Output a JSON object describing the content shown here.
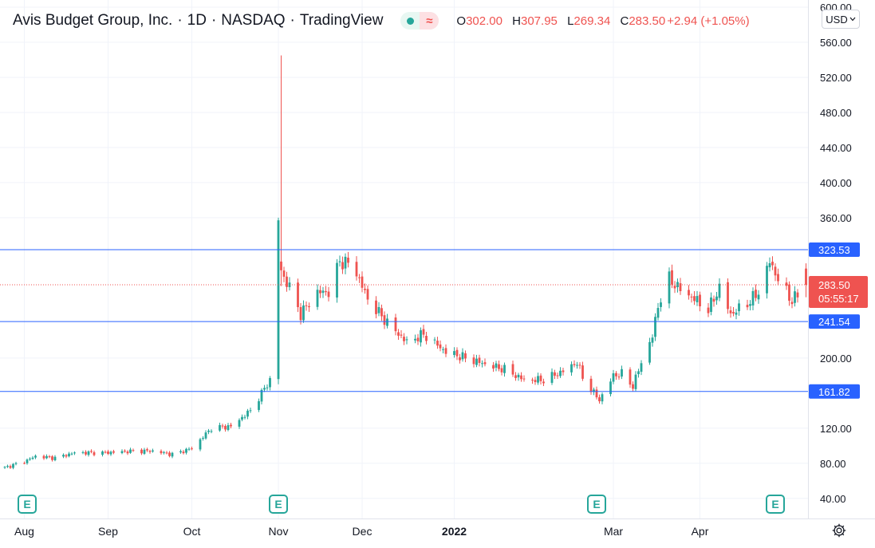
{
  "header": {
    "title": "Avis Budget Group, Inc.",
    "interval": "1D",
    "exchange": "NASDAQ",
    "provider": "TradingView",
    "ohlc": {
      "o_label": "O",
      "o_value": "302.00",
      "h_label": "H",
      "h_value": "307.95",
      "l_label": "L",
      "l_value": "269.34",
      "c_label": "C",
      "c_value": "283.50",
      "change": "+2.94 (+1.05%)"
    }
  },
  "currency": {
    "label": "USD"
  },
  "colors": {
    "up": "#26a69a",
    "down": "#ef5350",
    "hline": "#2962ff",
    "label_bg": "#2962ff",
    "price_bg": "#ef5350",
    "grid": "#f0f3fa"
  },
  "price_label": {
    "price": "283.50",
    "countdown": "05:55:17"
  },
  "chart_data": {
    "type": "candlestick",
    "y_ticks": [
      600,
      560,
      520,
      480,
      440,
      400,
      360,
      200,
      120,
      80,
      40
    ],
    "y_tick_labels": [
      "600.00",
      "560.00",
      "520.00",
      "480.00",
      "440.00",
      "400.00",
      "360.00",
      "200.00",
      "120.00",
      "80.00",
      "40.00"
    ],
    "ylim": [
      32.5,
      600
    ],
    "x_ticks": [
      {
        "label": "Aug",
        "date": "2021-08-02",
        "bold": false
      },
      {
        "label": "Sep",
        "date": "2021-09-01",
        "bold": false
      },
      {
        "label": "Oct",
        "date": "2021-10-01",
        "bold": false
      },
      {
        "label": "Nov",
        "date": "2021-11-01",
        "bold": false
      },
      {
        "label": "Dec",
        "date": "2021-12-01",
        "bold": false
      },
      {
        "label": "2022",
        "date": "2022-01-03",
        "bold": true
      },
      {
        "label": "Mar",
        "date": "2022-03-01",
        "bold": false
      },
      {
        "label": "Apr",
        "date": "2022-04-01",
        "bold": false
      }
    ],
    "horizontal_lines": [
      323.53,
      241.54,
      161.82
    ],
    "horizontal_line_labels": [
      "323.53",
      "241.54",
      "161.82"
    ],
    "current_price": 283.5,
    "earnings_markers": [
      {
        "date": "2021-08-03",
        "label": "E"
      },
      {
        "date": "2021-11-01",
        "label": "E"
      },
      {
        "date": "2022-02-23",
        "label": "E"
      },
      {
        "date": "2022-04-28",
        "label": "E"
      }
    ],
    "close_anchors": [
      [
        "2021-07-26",
        75
      ],
      [
        "2021-08-02",
        82
      ],
      [
        "2021-08-06",
        88
      ],
      [
        "2021-08-13",
        86
      ],
      [
        "2021-08-20",
        92
      ],
      [
        "2021-08-31",
        92
      ],
      [
        "2021-09-10",
        94
      ],
      [
        "2021-09-17",
        94
      ],
      [
        "2021-09-24",
        90
      ],
      [
        "2021-10-01",
        97
      ],
      [
        "2021-10-08",
        120
      ],
      [
        "2021-10-15",
        122
      ],
      [
        "2021-10-22",
        140
      ],
      [
        "2021-10-26",
        160
      ],
      [
        "2021-10-29",
        175
      ],
      [
        "2021-11-01",
        357
      ],
      [
        "2021-11-02",
        300
      ],
      [
        "2021-11-03",
        292
      ],
      [
        "2021-11-05",
        280
      ],
      [
        "2021-11-09",
        250
      ],
      [
        "2021-11-15",
        275
      ],
      [
        "2021-11-19",
        275
      ],
      [
        "2021-11-23",
        310
      ],
      [
        "2021-11-26",
        308
      ],
      [
        "2021-11-29",
        297
      ],
      [
        "2021-12-03",
        267
      ],
      [
        "2021-12-10",
        240
      ],
      [
        "2021-12-17",
        218
      ],
      [
        "2021-12-23",
        227
      ],
      [
        "2021-12-31",
        207
      ],
      [
        "2022-01-07",
        200
      ],
      [
        "2022-01-14",
        193
      ],
      [
        "2022-01-21",
        187
      ],
      [
        "2022-01-28",
        175
      ],
      [
        "2022-02-04",
        175
      ],
      [
        "2022-02-11",
        185
      ],
      [
        "2022-02-16",
        195
      ],
      [
        "2022-02-18",
        178
      ],
      [
        "2022-02-22",
        160
      ],
      [
        "2022-02-24",
        152
      ],
      [
        "2022-03-01",
        180
      ],
      [
        "2022-03-04",
        182
      ],
      [
        "2022-03-08",
        168
      ],
      [
        "2022-03-11",
        195
      ],
      [
        "2022-03-15",
        225
      ],
      [
        "2022-03-17",
        260
      ],
      [
        "2022-03-21",
        290
      ],
      [
        "2022-03-25",
        278
      ],
      [
        "2022-03-31",
        265
      ],
      [
        "2022-04-04",
        255
      ],
      [
        "2022-04-08",
        280
      ],
      [
        "2022-04-12",
        250
      ],
      [
        "2022-04-18",
        262
      ],
      [
        "2022-04-22",
        275
      ],
      [
        "2022-04-26",
        310
      ],
      [
        "2022-04-29",
        290
      ],
      [
        "2022-05-04",
        265
      ],
      [
        "2022-05-09",
        283.5
      ]
    ],
    "spike": {
      "date": "2021-11-02",
      "high": 545
    },
    "last_bar": {
      "open": 302.0,
      "high": 307.95,
      "low": 269.34,
      "close": 283.5
    }
  },
  "footer": {
    "settings_icon": "gear-icon"
  }
}
